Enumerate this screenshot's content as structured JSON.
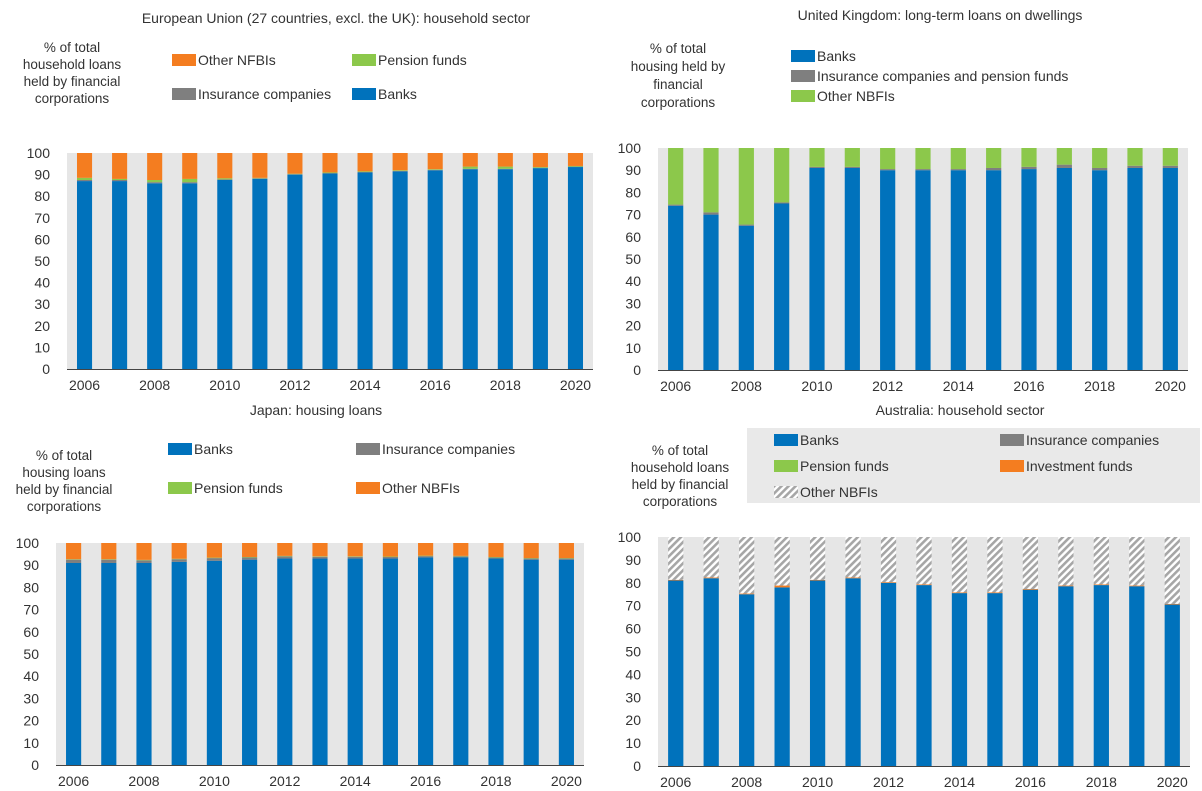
{
  "colors": {
    "banks": "#0072bc",
    "insurance": "#7f7f7f",
    "pension": "#8cc84b",
    "other_orange": "#f47d20",
    "other_hatch": "#a6a6a6",
    "plot_bg": "#e6e6e6",
    "legend_box": "#e9e9e9",
    "text": "#333333"
  },
  "chart_data": [
    {
      "id": "eu",
      "type": "bar",
      "stacked": true,
      "title": "European Union (27 countries, excl. the UK): household sector",
      "ylabel": "% of total household loans held by financial corporations",
      "ylabel_lines": [
        "% of total",
        "household loans",
        "held by financial",
        "corporations"
      ],
      "ylim": [
        0,
        100
      ],
      "yticks": [
        0,
        10,
        20,
        30,
        40,
        50,
        60,
        70,
        80,
        90,
        100
      ],
      "grid": false,
      "categories": [
        "2006",
        "2007",
        "2008",
        "2009",
        "2010",
        "2011",
        "2012",
        "2013",
        "2014",
        "2015",
        "2016",
        "2017",
        "2018",
        "2019",
        "2020"
      ],
      "xtick_labels": [
        "2006",
        "2008",
        "2010",
        "2012",
        "2014",
        "2016",
        "2018",
        "2020"
      ],
      "legend_placement": "top",
      "legend_order": [
        "Other NFBIs",
        "Pension funds",
        "Insurance companies",
        "Banks"
      ],
      "series": [
        {
          "name": "Banks",
          "key": "banks",
          "values": [
            87,
            87,
            86,
            86,
            87.5,
            88,
            90,
            90.5,
            91,
            91.5,
            92,
            92.5,
            92.5,
            93,
            93.5
          ]
        },
        {
          "name": "Insurance companies",
          "key": "insurance",
          "values": [
            0.5,
            0.5,
            0.5,
            0.5,
            0.3,
            0.3,
            0.2,
            0.2,
            0.2,
            0.2,
            0.2,
            0.2,
            0.2,
            0.2,
            0.2
          ]
        },
        {
          "name": "Pension funds",
          "key": "pension",
          "values": [
            1,
            0.5,
            1,
            1.5,
            0.5,
            0.2,
            0.2,
            0.3,
            0.3,
            0.3,
            0.3,
            1,
            1,
            0.3,
            0.3
          ]
        },
        {
          "name": "Other NFBIs",
          "key": "other",
          "values": [
            11.5,
            12,
            12.5,
            12,
            11.7,
            11.5,
            9.6,
            9,
            8.5,
            8,
            7.5,
            6.3,
            6.3,
            6.5,
            6
          ]
        }
      ]
    },
    {
      "id": "uk",
      "type": "bar",
      "stacked": true,
      "title": "United Kingdom: long-term loans on dwellings",
      "ylabel": "% of total housing held by financial corporations",
      "ylabel_lines": [
        "% of total",
        "housing held by",
        "financial",
        "corporations"
      ],
      "ylim": [
        0,
        100
      ],
      "yticks": [
        0,
        10,
        20,
        30,
        40,
        50,
        60,
        70,
        80,
        90,
        100
      ],
      "grid": false,
      "categories": [
        "2006",
        "2007",
        "2008",
        "2009",
        "2010",
        "2011",
        "2012",
        "2013",
        "2014",
        "2015",
        "2016",
        "2017",
        "2018",
        "2019",
        "2020"
      ],
      "xtick_labels": [
        "2006",
        "2008",
        "2010",
        "2012",
        "2014",
        "2016",
        "2018",
        "2020"
      ],
      "legend_placement": "top",
      "legend_order": [
        "Banks",
        "Insurance companies and pension funds",
        "Other NBFIs"
      ],
      "series": [
        {
          "name": "Banks",
          "key": "banks",
          "values": [
            74,
            70,
            65,
            75,
            91,
            91,
            90,
            90,
            90,
            90,
            90.5,
            91,
            90,
            91,
            91
          ]
        },
        {
          "name": "Insurance companies and pension funds",
          "key": "insurance",
          "values": [
            0.5,
            1,
            0.5,
            0.5,
            0.5,
            0.5,
            0.5,
            0.5,
            0.5,
            1,
            1,
            1.5,
            1,
            1,
            1
          ]
        },
        {
          "name": "Other NBFIs",
          "key": "pension",
          "values": [
            25.5,
            29,
            34.5,
            24.5,
            8.5,
            8.5,
            9.5,
            9.5,
            9.5,
            9,
            8.5,
            7.5,
            9,
            8,
            8
          ]
        }
      ]
    },
    {
      "id": "jp",
      "type": "bar",
      "stacked": true,
      "title": "Japan: housing loans",
      "ylabel": "% of total housing loans held by financial corporations",
      "ylabel_lines": [
        "% of total",
        "housing loans",
        "held by financial",
        "corporations"
      ],
      "ylim": [
        0,
        100
      ],
      "yticks": [
        0,
        10,
        20,
        30,
        40,
        50,
        60,
        70,
        80,
        90,
        100
      ],
      "grid": false,
      "categories": [
        "2006",
        "2007",
        "2008",
        "2009",
        "2010",
        "2011",
        "2012",
        "2013",
        "2014",
        "2015",
        "2016",
        "2017",
        "2018",
        "2019",
        "2020"
      ],
      "xtick_labels": [
        "2006",
        "2008",
        "2010",
        "2012",
        "2014",
        "2016",
        "2018",
        "2020"
      ],
      "legend_placement": "top",
      "legend_order": [
        "Banks",
        "Insurance companies",
        "Pension funds",
        "Other NBFIs"
      ],
      "series": [
        {
          "name": "Banks",
          "key": "banks",
          "values": [
            91,
            91,
            91,
            91.5,
            92,
            92.5,
            93,
            93,
            93,
            93,
            93.5,
            93.5,
            93,
            92.5,
            92.5
          ]
        },
        {
          "name": "Insurance companies",
          "key": "insurance",
          "values": [
            1.5,
            1.5,
            1.2,
            1.2,
            1.2,
            1,
            1,
            0.8,
            0.8,
            0.7,
            0.6,
            0.5,
            0.5,
            0.5,
            0.5
          ]
        },
        {
          "name": "Pension funds",
          "key": "pension",
          "values": [
            0.2,
            0.2,
            0.2,
            0.2,
            0.2,
            0.2,
            0.2,
            0.2,
            0.2,
            0.2,
            0.2,
            0.2,
            0.2,
            0.2,
            0.2
          ]
        },
        {
          "name": "Other NBFIs",
          "key": "other",
          "values": [
            7.3,
            7.3,
            7.6,
            7.1,
            6.6,
            6.3,
            5.8,
            6,
            6,
            6.1,
            5.7,
            5.8,
            6.3,
            6.8,
            6.8
          ]
        }
      ]
    },
    {
      "id": "au",
      "type": "bar",
      "stacked": true,
      "title": "Australia: household sector",
      "ylabel": "% of total household loans held by financial corporations",
      "ylabel_lines": [
        "% of total",
        "household loans",
        "held by financial",
        "corporations"
      ],
      "ylim": [
        0,
        100
      ],
      "yticks": [
        0,
        10,
        20,
        30,
        40,
        50,
        60,
        70,
        80,
        90,
        100
      ],
      "grid": false,
      "categories": [
        "2006",
        "2007",
        "2008",
        "2009",
        "2010",
        "2011",
        "2012",
        "2013",
        "2014",
        "2015",
        "2016",
        "2017",
        "2018",
        "2019",
        "2020"
      ],
      "xtick_labels": [
        "2006",
        "2008",
        "2010",
        "2012",
        "2014",
        "2016",
        "2018",
        "2020"
      ],
      "legend_placement": "top",
      "legend_order": [
        "Banks",
        "Insurance companies",
        "Pension funds",
        "Investment funds",
        "Other NBFIs"
      ],
      "series": [
        {
          "name": "Banks",
          "key": "banks",
          "values": [
            81,
            82,
            75,
            78,
            81,
            82,
            80,
            79,
            75.5,
            75.5,
            77,
            78.5,
            79,
            78.5,
            70.5
          ]
        },
        {
          "name": "Insurance companies",
          "key": "insurance",
          "values": [
            0,
            0,
            0,
            0,
            0,
            0,
            0,
            0,
            0,
            0,
            0,
            0,
            0,
            0,
            0
          ]
        },
        {
          "name": "Pension funds",
          "key": "pension",
          "values": [
            0,
            0,
            0,
            0,
            0,
            0,
            0,
            0,
            0,
            0,
            0,
            0,
            0,
            0,
            0
          ]
        },
        {
          "name": "Investment funds",
          "key": "other",
          "values": [
            0.3,
            0.3,
            0.3,
            0.8,
            0.3,
            0.3,
            0.3,
            0.3,
            0.3,
            0.3,
            0.3,
            0.3,
            0.3,
            0.3,
            0.3
          ]
        },
        {
          "name": "Other NBFIs",
          "key": "hatch",
          "values": [
            18.7,
            17.7,
            24.7,
            21.2,
            18.7,
            17.7,
            19.7,
            20.7,
            24.2,
            24.2,
            22.7,
            21.2,
            20.7,
            21.2,
            29.2
          ]
        }
      ]
    }
  ]
}
